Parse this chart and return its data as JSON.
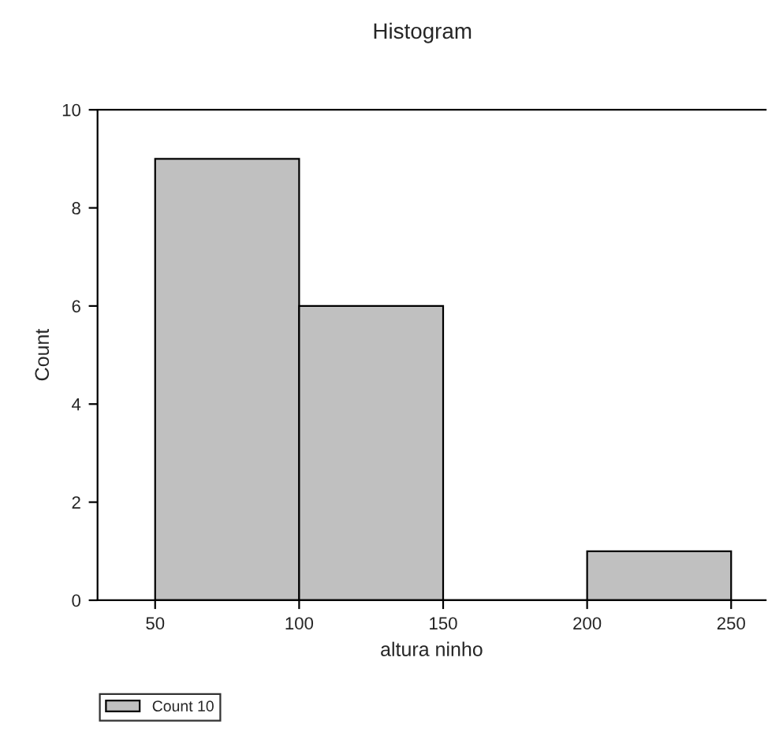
{
  "chart_data": {
    "type": "histogram",
    "title": "Histogram",
    "xlabel": "altura ninho",
    "ylabel": "Count",
    "bins": [
      50,
      100,
      150,
      200,
      250
    ],
    "series": [
      {
        "name": "Count 10",
        "color": "#c0c0c0",
        "values": [
          9,
          6,
          0,
          1
        ]
      }
    ],
    "xlim": [
      30,
      262
    ],
    "xticks": [
      50,
      100,
      150,
      200,
      250
    ],
    "ylim": [
      0,
      10
    ],
    "yticks": [
      0,
      2,
      4,
      6,
      8,
      10
    ],
    "grid": false,
    "legend": "bottom left"
  }
}
